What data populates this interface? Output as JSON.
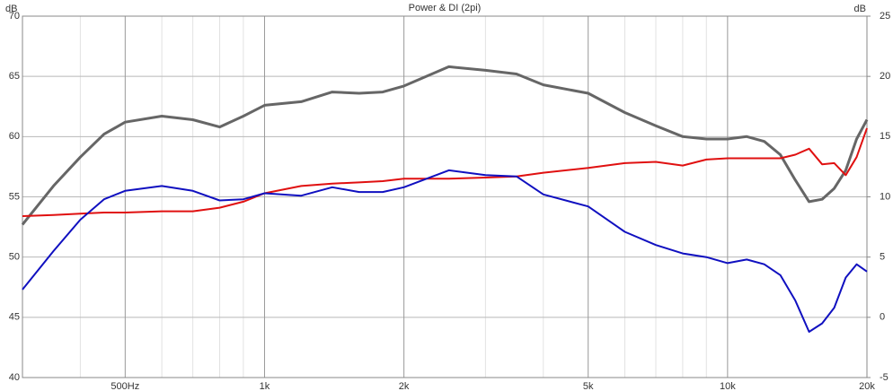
{
  "chart_data": {
    "type": "line",
    "title": "Power & DI (2pi)",
    "y_label": "dB",
    "y2_label": "dB",
    "x": [
      300,
      350,
      400,
      450,
      500,
      600,
      700,
      800,
      900,
      1000,
      1200,
      1400,
      1600,
      1800,
      2000,
      2500,
      3000,
      3500,
      4000,
      5000,
      6000,
      7000,
      8000,
      9000,
      10000,
      11000,
      12000,
      13000,
      14000,
      15000,
      16000,
      17000,
      18000,
      19000,
      20000
    ],
    "series": [
      {
        "color": "#666666",
        "values": [
          52.7,
          55.9,
          58.3,
          60.2,
          61.2,
          61.7,
          61.4,
          60.8,
          61.7,
          62.6,
          62.9,
          63.7,
          63.6,
          63.7,
          64.2,
          65.8,
          65.5,
          65.2,
          64.3,
          63.6,
          62.0,
          60.9,
          60.0,
          59.8,
          59.8,
          60.0,
          59.6,
          58.5,
          56.4,
          54.6,
          54.8,
          55.7,
          57.2,
          59.8,
          61.4
        ]
      },
      {
        "color": "#e01010",
        "axis": "y2",
        "values": [
          8.4,
          8.5,
          8.6,
          8.7,
          8.7,
          8.8,
          8.8,
          9.1,
          9.6,
          10.3,
          10.9,
          11.1,
          11.2,
          11.3,
          11.5,
          11.5,
          11.6,
          11.7,
          12.0,
          12.4,
          12.8,
          12.9,
          12.6,
          13.1,
          13.2,
          13.2,
          13.2,
          13.2,
          13.5,
          14.0,
          12.7,
          12.8,
          11.8,
          13.3,
          15.7
        ]
      },
      {
        "color": "#1010c0",
        "values": [
          47.3,
          50.5,
          53.1,
          54.8,
          55.5,
          55.9,
          55.5,
          54.7,
          54.8,
          55.3,
          55.1,
          55.8,
          55.4,
          55.4,
          55.8,
          57.2,
          56.8,
          56.7,
          55.2,
          54.2,
          52.1,
          51.0,
          50.3,
          50.0,
          49.5,
          49.8,
          49.4,
          48.5,
          46.4,
          43.8,
          44.5,
          45.8,
          48.3,
          49.4,
          48.8
        ]
      }
    ],
    "log_x": true,
    "xlim": [
      300,
      20000
    ],
    "xticks": [
      {
        "value": 500,
        "label": "500Hz"
      },
      {
        "value": 1000,
        "label": "1k"
      },
      {
        "value": 2000,
        "label": "2k"
      },
      {
        "value": 5000,
        "label": "5k"
      },
      {
        "value": 10000,
        "label": "10k"
      },
      {
        "value": 20000,
        "label": "20k"
      }
    ],
    "xminorticks": [
      300,
      400,
      600,
      700,
      800,
      900,
      3000,
      4000,
      6000,
      7000,
      8000,
      9000
    ],
    "ylim": [
      40,
      70
    ],
    "yticks": [
      40,
      45,
      50,
      55,
      60,
      65,
      70
    ],
    "y2lim": [
      -5,
      25
    ],
    "y2ticks": [
      -5,
      0,
      5,
      10,
      15,
      20,
      25
    ],
    "grid": true
  }
}
